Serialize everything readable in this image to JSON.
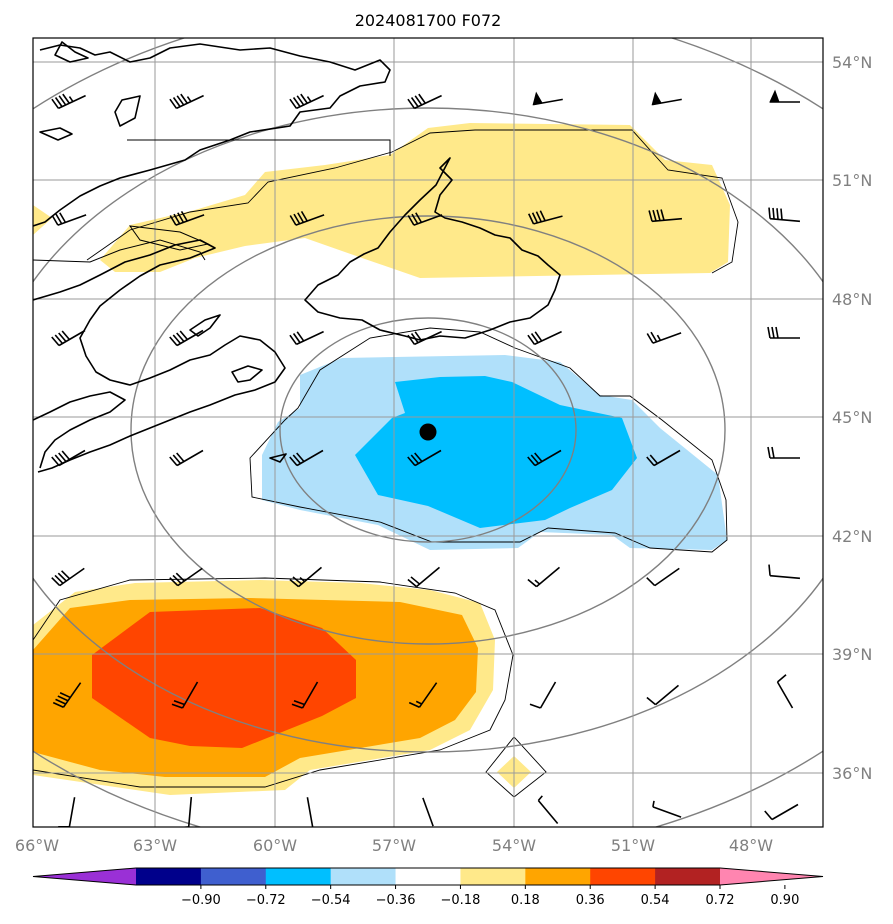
{
  "title": "2024081700 F072",
  "map": {
    "lon_range": [
      -66,
      -46
    ],
    "lat_range": [
      34.6,
      54.6
    ],
    "lon_ticks": [
      "66°W",
      "63°W",
      "60°W",
      "57°W",
      "54°W",
      "51°W",
      "48°W"
    ],
    "lat_ticks": [
      "36°N",
      "39°N",
      "42°N",
      "45°N",
      "48°N",
      "51°N",
      "54°N"
    ],
    "center_marker": {
      "lon": -56.3,
      "lat": 44.6
    }
  },
  "colorbar": {
    "ticks": [
      "−0.90",
      "−0.72",
      "−0.54",
      "−0.36",
      "−0.18",
      "0.18",
      "0.36",
      "0.54",
      "0.72",
      "0.90"
    ],
    "colors": [
      "#9a30d6",
      "#00008b",
      "#3f5fcf",
      "#00bfff",
      "#b0e0fa",
      "#ffffff",
      "#ffe98a",
      "#ffa500",
      "#ff4500",
      "#b22222",
      "#ff85b0"
    ]
  },
  "colors": {
    "neg_light": "#b0e0fa",
    "neg_mid": "#00bfff",
    "pos_light": "#ffe98a",
    "pos_mid": "#ffa500",
    "pos_strong": "#ff4500"
  }
}
